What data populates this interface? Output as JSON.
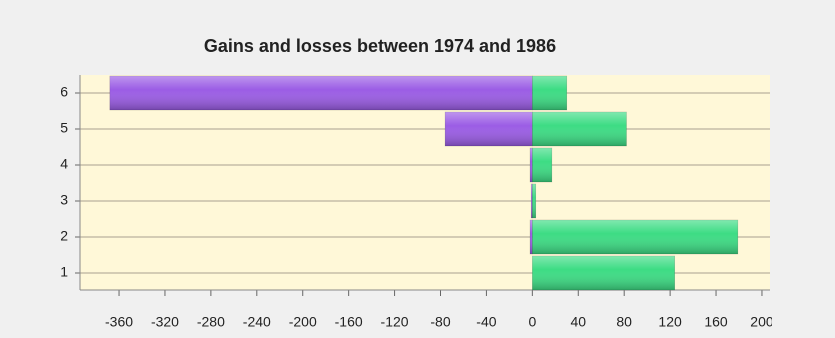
{
  "chart_data": {
    "type": "hbar",
    "title": "Gains and losses between 1974 and 1986",
    "categories": [
      "1",
      "2",
      "3",
      "4",
      "5",
      "6"
    ],
    "series": [
      {
        "color": "#9b5de5",
        "values": [
          0,
          -2,
          -1,
          -2,
          -76,
          -368
        ]
      },
      {
        "color": "#3ddc84",
        "values": [
          124,
          179,
          3,
          17,
          82,
          30
        ]
      }
    ],
    "xlim": [
      -394,
      207
    ],
    "xticks": [
      -360,
      -320,
      -280,
      -240,
      -200,
      -160,
      -120,
      -80,
      -40,
      0,
      40,
      80,
      120,
      160,
      200
    ],
    "grid": true
  }
}
